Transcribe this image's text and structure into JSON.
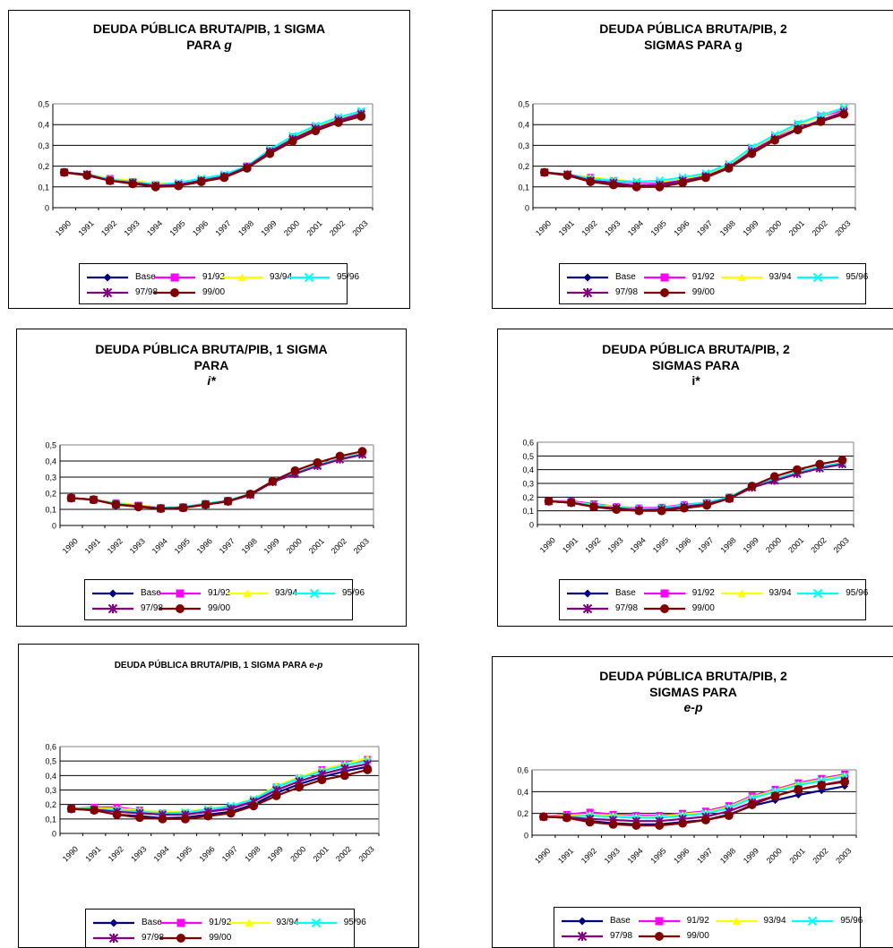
{
  "legend": [
    {
      "label": "Base",
      "color": "#000080",
      "marker": "diamond"
    },
    {
      "label": "91/92",
      "color": "#FF00FF",
      "marker": "square"
    },
    {
      "label": "93/94",
      "color": "#FFFF00",
      "marker": "triangle"
    },
    {
      "label": "95/96",
      "color": "#00FFFF",
      "marker": "x"
    },
    {
      "label": "97/98",
      "color": "#800080",
      "marker": "star"
    },
    {
      "label": "99/00",
      "color": "#800000",
      "marker": "circle"
    }
  ],
  "chart_data": [
    {
      "type": "line",
      "title_lines": [
        "DEUDA PÚBLICA BRUTA/PIB, 1 SIGMA",
        "PARA g"
      ],
      "title_italic_token": "g",
      "x": [
        "1990",
        "1991",
        "1992",
        "1993",
        "1994",
        "1995",
        "1996",
        "1997",
        "1998",
        "1999",
        "2000",
        "2001",
        "2002",
        "2003"
      ],
      "yticks": [
        "0",
        "0,1",
        "0,2",
        "0,3",
        "0,4",
        "0,5"
      ],
      "ylim": [
        0,
        0.5
      ],
      "series": [
        {
          "name": "Base",
          "values": [
            0.17,
            0.16,
            0.13,
            0.12,
            0.105,
            0.11,
            0.13,
            0.15,
            0.195,
            0.27,
            0.33,
            0.38,
            0.42,
            0.45
          ]
        },
        {
          "name": "91/92",
          "values": [
            0.17,
            0.16,
            0.14,
            0.125,
            0.11,
            0.115,
            0.135,
            0.155,
            0.2,
            0.275,
            0.34,
            0.39,
            0.43,
            0.46
          ]
        },
        {
          "name": "93/94",
          "values": [
            0.17,
            0.16,
            0.14,
            0.13,
            0.115,
            0.12,
            0.14,
            0.155,
            0.2,
            0.28,
            0.34,
            0.39,
            0.43,
            0.465
          ]
        },
        {
          "name": "95/96",
          "values": [
            0.17,
            0.16,
            0.135,
            0.125,
            0.11,
            0.12,
            0.14,
            0.16,
            0.2,
            0.28,
            0.345,
            0.395,
            0.435,
            0.465
          ]
        },
        {
          "name": "97/98",
          "values": [
            0.17,
            0.16,
            0.13,
            0.12,
            0.105,
            0.11,
            0.13,
            0.15,
            0.195,
            0.27,
            0.33,
            0.38,
            0.42,
            0.45
          ]
        },
        {
          "name": "99/00",
          "values": [
            0.17,
            0.155,
            0.13,
            0.115,
            0.1,
            0.105,
            0.125,
            0.145,
            0.19,
            0.26,
            0.32,
            0.37,
            0.41,
            0.44
          ]
        }
      ]
    },
    {
      "type": "line",
      "title_lines": [
        "DEUDA PÚBLICA BRUTA/PIB, 2",
        "SIGMAS PARA g"
      ],
      "title_italic_token": "",
      "x": [
        "1990",
        "1991",
        "1992",
        "1993",
        "1994",
        "1995",
        "1996",
        "1997",
        "1998",
        "1999",
        "2000",
        "2001",
        "2002",
        "2003"
      ],
      "yticks": [
        "0",
        "0,1",
        "0,2",
        "0,3",
        "0,4",
        "0,5"
      ],
      "ylim": [
        0,
        0.5
      ],
      "series": [
        {
          "name": "Base",
          "values": [
            0.17,
            0.16,
            0.13,
            0.12,
            0.105,
            0.11,
            0.13,
            0.15,
            0.195,
            0.27,
            0.33,
            0.38,
            0.42,
            0.46
          ]
        },
        {
          "name": "91/92",
          "values": [
            0.17,
            0.16,
            0.145,
            0.13,
            0.12,
            0.12,
            0.135,
            0.155,
            0.2,
            0.28,
            0.34,
            0.4,
            0.44,
            0.47
          ]
        },
        {
          "name": "93/94",
          "values": [
            0.17,
            0.16,
            0.145,
            0.135,
            0.125,
            0.125,
            0.14,
            0.16,
            0.205,
            0.285,
            0.345,
            0.4,
            0.44,
            0.48
          ]
        },
        {
          "name": "95/96",
          "values": [
            0.17,
            0.16,
            0.14,
            0.13,
            0.125,
            0.13,
            0.145,
            0.165,
            0.21,
            0.29,
            0.35,
            0.405,
            0.445,
            0.48
          ]
        },
        {
          "name": "97/98",
          "values": [
            0.17,
            0.16,
            0.13,
            0.12,
            0.105,
            0.11,
            0.13,
            0.15,
            0.195,
            0.27,
            0.33,
            0.38,
            0.42,
            0.46
          ]
        },
        {
          "name": "99/00",
          "values": [
            0.17,
            0.155,
            0.125,
            0.11,
            0.1,
            0.1,
            0.12,
            0.145,
            0.19,
            0.26,
            0.325,
            0.375,
            0.415,
            0.45
          ]
        }
      ]
    },
    {
      "type": "line",
      "title_lines": [
        "DEUDA PÚBLICA BRUTA/PIB, 1 SIGMA",
        "PARA",
        "i*"
      ],
      "title_italic_token": "i*",
      "x": [
        "1990",
        "1991",
        "1992",
        "1993",
        "1994",
        "1995",
        "1996",
        "1997",
        "1998",
        "1999",
        "2000",
        "2001",
        "2002",
        "2003"
      ],
      "yticks": [
        "0",
        "0,1",
        "0,2",
        "0,3",
        "0,4",
        "0,5"
      ],
      "ylim": [
        0,
        0.5
      ],
      "series": [
        {
          "name": "Base",
          "values": [
            0.17,
            0.16,
            0.13,
            0.12,
            0.105,
            0.11,
            0.13,
            0.15,
            0.19,
            0.27,
            0.32,
            0.37,
            0.41,
            0.44
          ]
        },
        {
          "name": "91/92",
          "values": [
            0.17,
            0.16,
            0.14,
            0.125,
            0.11,
            0.115,
            0.135,
            0.155,
            0.195,
            0.275,
            0.325,
            0.375,
            0.415,
            0.445
          ]
        },
        {
          "name": "93/94",
          "values": [
            0.17,
            0.16,
            0.14,
            0.125,
            0.11,
            0.115,
            0.135,
            0.155,
            0.195,
            0.275,
            0.325,
            0.375,
            0.415,
            0.445
          ]
        },
        {
          "name": "95/96",
          "values": [
            0.17,
            0.16,
            0.135,
            0.12,
            0.11,
            0.115,
            0.135,
            0.155,
            0.195,
            0.275,
            0.325,
            0.375,
            0.415,
            0.445
          ]
        },
        {
          "name": "97/98",
          "values": [
            0.17,
            0.16,
            0.13,
            0.12,
            0.105,
            0.11,
            0.13,
            0.15,
            0.19,
            0.27,
            0.32,
            0.37,
            0.41,
            0.44
          ]
        },
        {
          "name": "99/00",
          "values": [
            0.17,
            0.16,
            0.13,
            0.115,
            0.105,
            0.11,
            0.13,
            0.15,
            0.195,
            0.275,
            0.34,
            0.39,
            0.43,
            0.46
          ]
        }
      ]
    },
    {
      "type": "line",
      "title_lines": [
        "DEUDA PÚBLICA BRUTA/PIB, 2",
        "SIGMAS PARA",
        "i*"
      ],
      "title_italic_token": "",
      "x": [
        "1990",
        "1991",
        "1992",
        "1993",
        "1994",
        "1995",
        "1996",
        "1997",
        "1998",
        "1999",
        "2000",
        "2001",
        "2002",
        "2003"
      ],
      "yticks": [
        "0",
        "0,1",
        "0,2",
        "0,3",
        "0,4",
        "0,5",
        "0,6"
      ],
      "ylim": [
        0,
        0.6
      ],
      "series": [
        {
          "name": "Base",
          "values": [
            0.17,
            0.16,
            0.13,
            0.12,
            0.105,
            0.11,
            0.13,
            0.15,
            0.19,
            0.27,
            0.32,
            0.37,
            0.41,
            0.44
          ]
        },
        {
          "name": "91/92",
          "values": [
            0.17,
            0.17,
            0.15,
            0.13,
            0.12,
            0.125,
            0.145,
            0.16,
            0.2,
            0.28,
            0.33,
            0.38,
            0.42,
            0.45
          ]
        },
        {
          "name": "93/94",
          "values": [
            0.17,
            0.165,
            0.145,
            0.13,
            0.115,
            0.12,
            0.14,
            0.16,
            0.2,
            0.28,
            0.33,
            0.38,
            0.42,
            0.45
          ]
        },
        {
          "name": "95/96",
          "values": [
            0.17,
            0.165,
            0.14,
            0.125,
            0.115,
            0.12,
            0.14,
            0.16,
            0.2,
            0.28,
            0.33,
            0.38,
            0.42,
            0.45
          ]
        },
        {
          "name": "97/98",
          "values": [
            0.17,
            0.16,
            0.13,
            0.12,
            0.105,
            0.11,
            0.13,
            0.15,
            0.19,
            0.27,
            0.32,
            0.37,
            0.41,
            0.44
          ]
        },
        {
          "name": "99/00",
          "values": [
            0.17,
            0.16,
            0.13,
            0.11,
            0.1,
            0.1,
            0.12,
            0.14,
            0.19,
            0.28,
            0.35,
            0.4,
            0.44,
            0.47
          ]
        }
      ]
    },
    {
      "type": "line",
      "title_lines": [
        "DEUDA PÚBLICA BRUTA/PIB, 1 SIGMA PARA e-p"
      ],
      "title_italic_token": "e-p",
      "x": [
        "1990",
        "1991",
        "1992",
        "1993",
        "1994",
        "1995",
        "1996",
        "1997",
        "1998",
        "1999",
        "2000",
        "2001",
        "2002",
        "2003"
      ],
      "yticks": [
        "0",
        "0,1",
        "0,2",
        "0,3",
        "0,4",
        "0,5",
        "0,6"
      ],
      "ylim": [
        0,
        0.6
      ],
      "series": [
        {
          "name": "Base",
          "values": [
            0.17,
            0.16,
            0.13,
            0.12,
            0.105,
            0.11,
            0.13,
            0.15,
            0.2,
            0.28,
            0.34,
            0.39,
            0.43,
            0.46
          ]
        },
        {
          "name": "91/92",
          "values": [
            0.17,
            0.18,
            0.18,
            0.16,
            0.14,
            0.14,
            0.16,
            0.18,
            0.23,
            0.32,
            0.38,
            0.44,
            0.48,
            0.51
          ]
        },
        {
          "name": "93/94",
          "values": [
            0.17,
            0.175,
            0.17,
            0.16,
            0.15,
            0.15,
            0.17,
            0.19,
            0.24,
            0.33,
            0.39,
            0.44,
            0.48,
            0.52
          ]
        },
        {
          "name": "95/96",
          "values": [
            0.17,
            0.17,
            0.16,
            0.15,
            0.14,
            0.145,
            0.165,
            0.19,
            0.235,
            0.32,
            0.38,
            0.43,
            0.47,
            0.5
          ]
        },
        {
          "name": "97/98",
          "values": [
            0.17,
            0.165,
            0.15,
            0.14,
            0.13,
            0.13,
            0.15,
            0.17,
            0.22,
            0.3,
            0.36,
            0.41,
            0.45,
            0.48
          ]
        },
        {
          "name": "99/00",
          "values": [
            0.17,
            0.16,
            0.13,
            0.11,
            0.1,
            0.1,
            0.12,
            0.14,
            0.19,
            0.26,
            0.32,
            0.37,
            0.4,
            0.44
          ]
        }
      ]
    },
    {
      "type": "line",
      "title_lines": [
        "DEUDA PÚBLICA BRUTA/PIB, 2",
        "SIGMAS PARA",
        "e-p"
      ],
      "title_italic_token": "e-p",
      "x": [
        "1990",
        "1991",
        "1992",
        "1993",
        "1994",
        "1995",
        "1996",
        "1997",
        "1998",
        "1999",
        "2000",
        "2001",
        "2002",
        "2003"
      ],
      "yticks": [
        "0",
        "0,2",
        "0,4",
        "0,6"
      ],
      "ylim": [
        0,
        0.6
      ],
      "series": [
        {
          "name": "Base",
          "values": [
            0.17,
            0.16,
            0.13,
            0.11,
            0.1,
            0.1,
            0.12,
            0.14,
            0.19,
            0.27,
            0.32,
            0.37,
            0.41,
            0.45
          ]
        },
        {
          "name": "91/92",
          "values": [
            0.17,
            0.19,
            0.21,
            0.19,
            0.18,
            0.18,
            0.2,
            0.22,
            0.27,
            0.36,
            0.42,
            0.48,
            0.52,
            0.56
          ]
        },
        {
          "name": "93/94",
          "values": [
            0.17,
            0.18,
            0.19,
            0.18,
            0.17,
            0.17,
            0.19,
            0.21,
            0.26,
            0.35,
            0.41,
            0.47,
            0.51,
            0.55
          ]
        },
        {
          "name": "95/96",
          "values": [
            0.17,
            0.17,
            0.18,
            0.17,
            0.16,
            0.16,
            0.18,
            0.2,
            0.25,
            0.34,
            0.4,
            0.46,
            0.5,
            0.54
          ]
        },
        {
          "name": "97/98",
          "values": [
            0.17,
            0.165,
            0.15,
            0.14,
            0.13,
            0.13,
            0.15,
            0.17,
            0.22,
            0.3,
            0.36,
            0.42,
            0.46,
            0.5
          ]
        },
        {
          "name": "99/00",
          "values": [
            0.17,
            0.16,
            0.12,
            0.1,
            0.09,
            0.09,
            0.11,
            0.14,
            0.18,
            0.28,
            0.36,
            0.42,
            0.46,
            0.49
          ]
        }
      ]
    }
  ]
}
